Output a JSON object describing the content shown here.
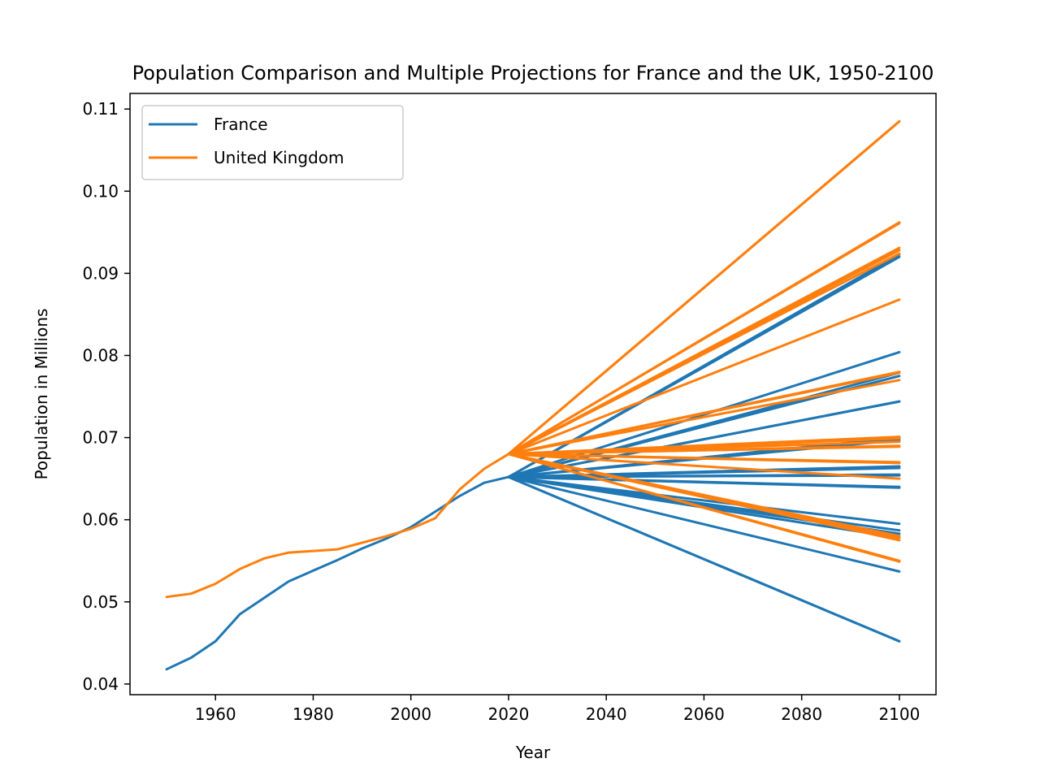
{
  "chart_data": {
    "type": "line",
    "title": "Population Comparison and Multiple Projections for France and the UK, 1950-2100",
    "xlabel": "Year",
    "ylabel": "Population in Millions",
    "xlim": [
      1942.5,
      2107.5
    ],
    "ylim": [
      0.0387,
      0.1119
    ],
    "xticks": [
      1960,
      1980,
      2000,
      2020,
      2040,
      2060,
      2080,
      2100
    ],
    "xtick_labels": [
      "1960",
      "1980",
      "2000",
      "2020",
      "2040",
      "2060",
      "2080",
      "2100"
    ],
    "yticks": [
      0.04,
      0.05,
      0.06,
      0.07,
      0.08,
      0.09,
      0.1,
      0.11
    ],
    "ytick_labels": [
      "0.04",
      "0.05",
      "0.06",
      "0.07",
      "0.08",
      "0.09",
      "0.10",
      "0.11"
    ],
    "grid": false,
    "legend_placement": "top-left",
    "colors": {
      "France": "#1f77b4",
      "United Kingdom": "#ff7f0e"
    },
    "legend": [
      {
        "name": "France",
        "color": "#1f77b4"
      },
      {
        "name": "United Kingdom",
        "color": "#ff7f0e"
      }
    ],
    "historical": [
      {
        "name": "France",
        "color": "#1f77b4",
        "points": [
          [
            1950,
            0.0418
          ],
          [
            1955,
            0.0432
          ],
          [
            1960,
            0.0452
          ],
          [
            1965,
            0.0485
          ],
          [
            1970,
            0.0505
          ],
          [
            1975,
            0.0525
          ],
          [
            1980,
            0.0538
          ],
          [
            1985,
            0.0551
          ],
          [
            1990,
            0.0565
          ],
          [
            1995,
            0.0577
          ],
          [
            2000,
            0.0591
          ],
          [
            2005,
            0.061
          ],
          [
            2010,
            0.0629
          ],
          [
            2015,
            0.0645
          ],
          [
            2020,
            0.0652
          ]
        ]
      },
      {
        "name": "United Kingdom",
        "color": "#ff7f0e",
        "points": [
          [
            1950,
            0.0506
          ],
          [
            1955,
            0.051
          ],
          [
            1960,
            0.0522
          ],
          [
            1965,
            0.054
          ],
          [
            1970,
            0.0553
          ],
          [
            1975,
            0.056
          ],
          [
            1980,
            0.0562
          ],
          [
            1985,
            0.0564
          ],
          [
            1990,
            0.0572
          ],
          [
            1995,
            0.058
          ],
          [
            2000,
            0.0589
          ],
          [
            2005,
            0.0602
          ],
          [
            2010,
            0.0637
          ],
          [
            2015,
            0.0662
          ],
          [
            2020,
            0.068
          ]
        ]
      }
    ],
    "projections": [
      {
        "name": "France",
        "color": "#1f77b4",
        "start": [
          2020,
          0.0652
        ],
        "end_values": [
          0.0923,
          0.092,
          0.0804,
          0.0779,
          0.0775,
          0.0744,
          0.0744,
          0.07,
          0.0697,
          0.0665,
          0.0663,
          0.0655,
          0.0654,
          0.064,
          0.0639,
          0.0595,
          0.0587,
          0.0583,
          0.0578,
          0.0537,
          0.0452,
          0.0452
        ]
      },
      {
        "name": "United Kingdom",
        "color": "#ff7f0e",
        "start": [
          2020,
          0.068
        ],
        "end_values": [
          0.1085,
          0.1085,
          0.0962,
          0.0961,
          0.0931,
          0.0928,
          0.0924,
          0.0868,
          0.078,
          0.0779,
          0.077,
          0.0701,
          0.07,
          0.0699,
          0.0695,
          0.069,
          0.0689,
          0.067,
          0.0669,
          0.065,
          0.058,
          0.0578,
          0.0575,
          0.055,
          0.0549
        ]
      }
    ]
  }
}
